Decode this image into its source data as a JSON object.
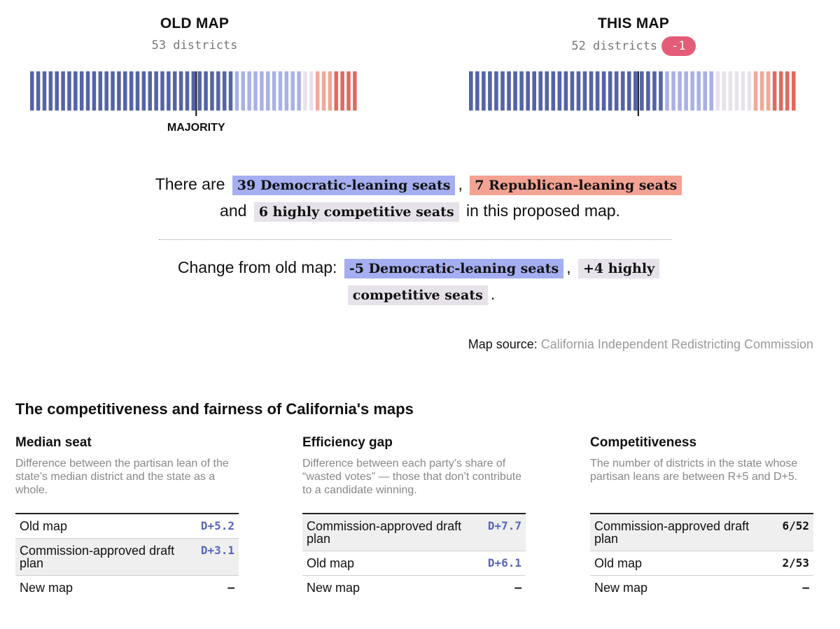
{
  "old_map": {
    "title": "OLD MAP",
    "districts_label": "53 districts",
    "majority_label": "MAJORITY"
  },
  "this_map": {
    "title": "THIS MAP",
    "districts_label": "52 districts",
    "change_label": "-1"
  },
  "colors": {
    "solid_dem": "#5564a8",
    "lean_dem": "#a9b1e6",
    "competitive": "#e8e2ea",
    "lean_rep": "#f0a898",
    "solid_rep": "#e06a5e",
    "majority_line": "#111111",
    "change_pill": "#e35c78"
  },
  "chart_data": [
    {
      "type": "bar",
      "title": "OLD MAP",
      "subtitle": "53 districts",
      "categories": [
        "Solid Democratic",
        "Lean Democratic",
        "Highly competitive",
        "Lean Republican",
        "Solid Republican"
      ],
      "values": [
        33,
        11,
        2,
        3,
        4
      ],
      "total": 53,
      "majority_seat": 27,
      "annotation": "MAJORITY"
    },
    {
      "type": "bar",
      "title": "THIS MAP",
      "subtitle": "52 districts",
      "categories": [
        "Solid Democratic",
        "Lean Democratic",
        "Highly competitive",
        "Lean Republican",
        "Solid Republican"
      ],
      "values": [
        31,
        8,
        6,
        3,
        4
      ],
      "total": 52,
      "majority_seat": 27,
      "change": "-1"
    }
  ],
  "summary": {
    "line1_prefix": "There are",
    "dem_seats": "39 Democratic-leaning seats",
    "comma": ",",
    "rep_seats": "7 Republican-leaning seats",
    "line2_prefix": "and",
    "comp_seats": "6 highly competitive seats",
    "line2_suffix": "in this proposed map."
  },
  "change": {
    "prefix": "Change from old map:",
    "dem_change": "-5 Democratic-leaning seats",
    "comma": ",",
    "comp_change_a": "+4 highly",
    "comp_change_b": "competitive seats",
    "period": "."
  },
  "source": {
    "label": "Map source:",
    "value": "California Independent Redistricting Commission"
  },
  "section_title": "The competitiveness and fairness of California's maps",
  "metrics": [
    {
      "title": "Median seat",
      "description": "Difference between the partisan lean of the state’s median district and the state as a whole.",
      "rows": [
        {
          "label": "Old map",
          "value": "D+5.2"
        },
        {
          "label": "Commission-approved draft plan",
          "value": "D+3.1"
        },
        {
          "label": "New map",
          "value": "–"
        }
      ]
    },
    {
      "title": "Efficiency gap",
      "description": "Difference between each party’s share of “wasted votes” — those that don’t contribute to a candidate winning.",
      "rows": [
        {
          "label": "Commission-approved draft plan",
          "value": "D+7.7"
        },
        {
          "label": "Old map",
          "value": "D+6.1"
        },
        {
          "label": "New map",
          "value": "–"
        }
      ]
    },
    {
      "title": "Competitiveness",
      "description": "The number of districts in the state whose partisan leans are between R+5 and D+5.",
      "rows": [
        {
          "label": "Commission-approved draft plan",
          "value": "6/52"
        },
        {
          "label": "Old map",
          "value": "2/53"
        },
        {
          "label": "New map",
          "value": "–"
        }
      ]
    }
  ]
}
